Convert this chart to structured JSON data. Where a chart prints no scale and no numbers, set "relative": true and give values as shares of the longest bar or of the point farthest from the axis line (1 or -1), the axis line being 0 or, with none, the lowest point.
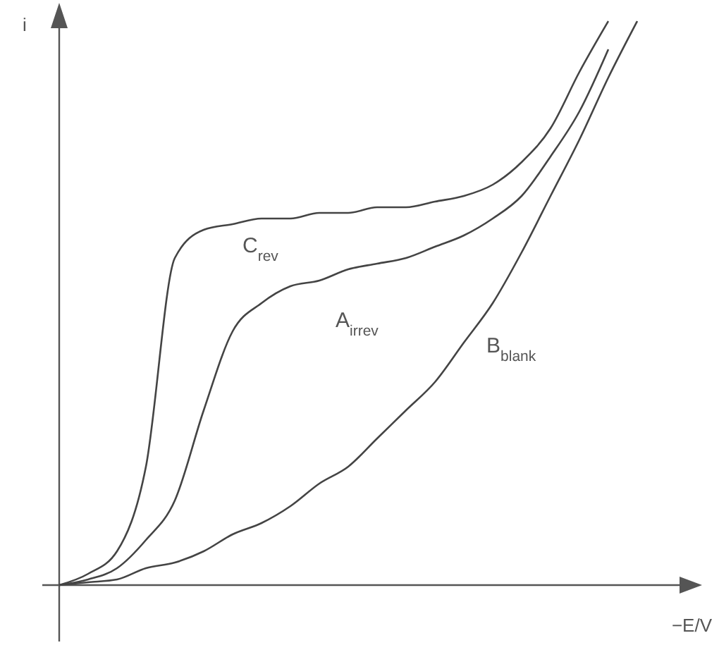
{
  "chart_data": {
    "type": "line",
    "relative": true,
    "xlabel": "−E/V",
    "ylabel": "i",
    "legend": false,
    "grid": false,
    "marker": "none",
    "line_style": "solid",
    "categories": [
      null,
      null,
      null,
      null,
      null,
      null,
      null,
      null,
      null,
      null,
      null,
      null,
      null,
      null,
      null,
      null,
      null,
      null,
      null,
      null,
      null
    ],
    "series": [
      {
        "name": "C$_{rev}$",
        "color": "#444444",
        "values": [
          0,
          0.02,
          0.06,
          0.21,
          0.58,
          0.63,
          0.64,
          0.65,
          0.65,
          0.66,
          0.66,
          0.67,
          0.67,
          0.68,
          0.69,
          0.71,
          0.75,
          0.81,
          0.91,
          1.0,
          null
        ]
      },
      {
        "name": "A$_{irrev}$",
        "color": "#444444",
        "values": [
          0,
          0.01,
          0.03,
          0.08,
          0.15,
          0.31,
          0.45,
          0.5,
          0.53,
          0.54,
          0.56,
          0.57,
          0.58,
          0.6,
          0.62,
          0.65,
          0.69,
          0.76,
          0.84,
          0.95,
          null
        ]
      },
      {
        "name": "B$_{blank}$",
        "color": "#444444",
        "values": [
          0,
          0.005,
          0.01,
          0.03,
          0.04,
          0.06,
          0.09,
          0.11,
          0.14,
          0.18,
          0.21,
          0.26,
          0.31,
          0.36,
          0.43,
          0.5,
          0.59,
          0.69,
          0.79,
          0.9,
          1.0
        ]
      }
    ]
  }
}
